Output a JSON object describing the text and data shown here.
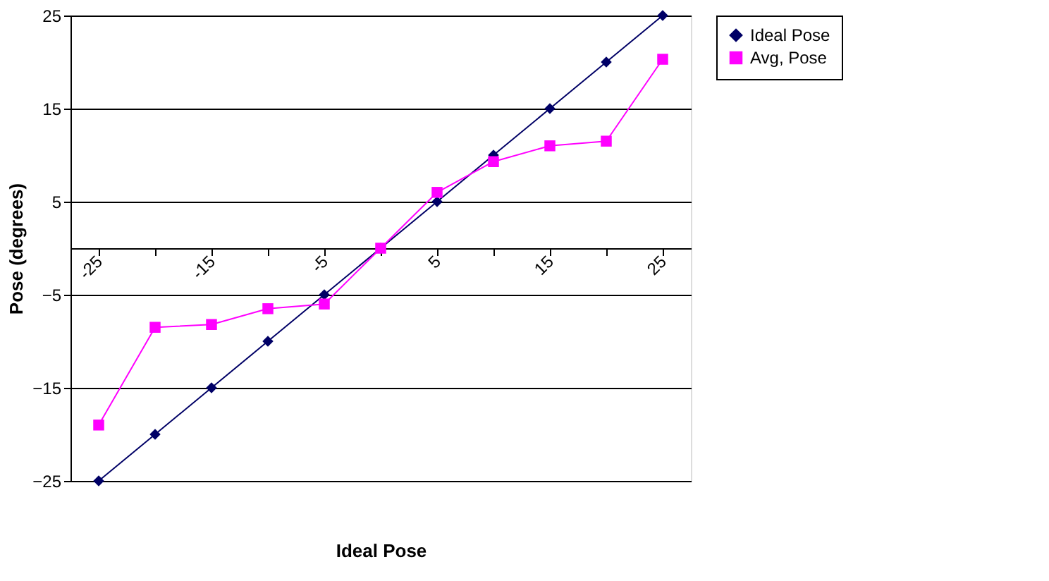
{
  "chart_data": {
    "type": "line",
    "xlabel": "Ideal Pose",
    "ylabel": "Pose (degrees)",
    "categories": [
      "-25",
      null,
      "-15",
      null,
      "-5",
      null,
      "5",
      null,
      "15",
      null,
      "25"
    ],
    "series": [
      {
        "name": "Ideal Pose",
        "color": "#000066",
        "marker": "diamond",
        "values": [
          -25,
          -20,
          -15,
          -10,
          -5,
          0,
          5,
          10,
          15,
          20,
          25
        ]
      },
      {
        "name": "Avg, Pose",
        "color": "#ff00ff",
        "marker": "square",
        "values": [
          -19,
          -8.5,
          -8.2,
          -6.5,
          -6,
          0,
          6,
          9.3,
          11,
          11.5,
          20.3
        ]
      }
    ],
    "ylim": [
      -25,
      25
    ],
    "yticks": [
      -25,
      -15,
      -5,
      5,
      15,
      25
    ],
    "grid": "y",
    "legend": "right",
    "line_style": "solid"
  }
}
